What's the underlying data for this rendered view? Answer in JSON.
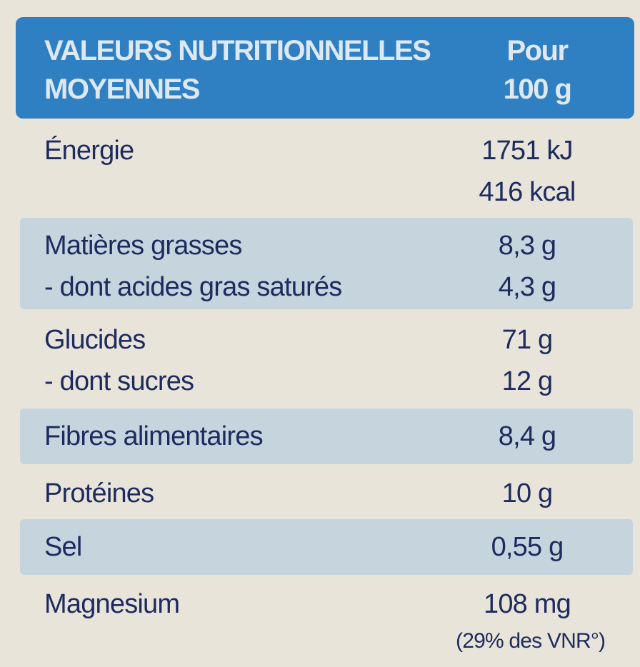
{
  "table": {
    "header": {
      "title": [
        "VALEURS NUTRITIONNELLES",
        "MOYENNES"
      ],
      "per": [
        "Pour",
        "100 g"
      ]
    },
    "groups": [
      {
        "labels": [
          "Énergie"
        ],
        "values": [
          "1751 kJ",
          "416 kcal"
        ]
      },
      {
        "labels": [
          "Matières grasses",
          "- dont acides gras saturés"
        ],
        "values": [
          "8,3 g",
          "4,3 g"
        ]
      },
      {
        "labels": [
          "Glucides",
          "- dont sucres"
        ],
        "values": [
          "71 g",
          "12 g"
        ]
      },
      {
        "labels": [
          "Fibres alimentaires"
        ],
        "values": [
          "8,4 g"
        ]
      },
      {
        "labels": [
          "Protéines"
        ],
        "values": [
          "10 g"
        ]
      },
      {
        "labels": [
          "Sel"
        ],
        "values": [
          "0,55 g"
        ]
      },
      {
        "labels": [
          "Magnesium"
        ],
        "values": [
          "108 mg",
          "(29% des VNR°)"
        ]
      }
    ]
  }
}
